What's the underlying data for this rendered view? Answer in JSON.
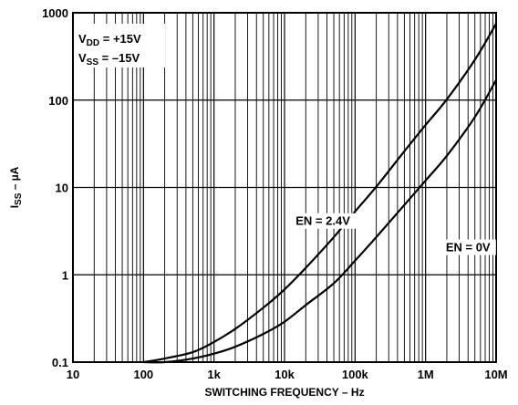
{
  "chart_data": {
    "type": "line",
    "x_scale": "log",
    "y_scale": "log",
    "xlim": [
      10,
      10000000
    ],
    "ylim": [
      0.1,
      1000
    ],
    "x_ticks": [
      {
        "value": 10,
        "label": "10"
      },
      {
        "value": 100,
        "label": "100"
      },
      {
        "value": 1000,
        "label": "1k"
      },
      {
        "value": 10000,
        "label": "10k"
      },
      {
        "value": 100000,
        "label": "100k"
      },
      {
        "value": 1000000,
        "label": "1M"
      },
      {
        "value": 10000000,
        "label": "10M"
      }
    ],
    "y_ticks": [
      {
        "value": 0.1,
        "label": "0.1"
      },
      {
        "value": 1,
        "label": "1"
      },
      {
        "value": 10,
        "label": "10"
      },
      {
        "value": 100,
        "label": "100"
      },
      {
        "value": 1000,
        "label": "1000"
      }
    ],
    "xlabel": "SWITCHING FREQUENCY – Hz",
    "ylabel": {
      "main": "I",
      "sub": "SS",
      "rest": " – µA"
    },
    "grid": true,
    "annotations": {
      "vdd": {
        "main": "V",
        "sub": "DD",
        "rest": " = +15V"
      },
      "vss": {
        "main": "V",
        "sub": "SS",
        "rest": " = –15V"
      }
    },
    "series": [
      {
        "name": "EN = 2.4V",
        "x": [
          100,
          200,
          500,
          1000,
          2000,
          5000,
          10000,
          20000,
          50000,
          100000,
          200000,
          500000,
          1000000,
          2000000,
          5000000,
          10000000
        ],
        "y": [
          0.1,
          0.11,
          0.13,
          0.17,
          0.24,
          0.42,
          0.68,
          1.2,
          2.7,
          5.3,
          10.2,
          26,
          52,
          102,
          290,
          750
        ]
      },
      {
        "name": "EN = 0V",
        "x": [
          100,
          200,
          500,
          1000,
          2000,
          5000,
          10000,
          20000,
          50000,
          100000,
          200000,
          500000,
          1000000,
          2000000,
          5000000,
          10000000
        ],
        "y": [
          0.1,
          0.1,
          0.11,
          0.125,
          0.15,
          0.21,
          0.29,
          0.45,
          0.8,
          1.45,
          2.7,
          6.3,
          12,
          23,
          64,
          170
        ]
      }
    ],
    "series_label_anchor": [
      {
        "x": 35000,
        "y": 3.8
      },
      {
        "x": 4000000,
        "y": 1.9
      }
    ]
  }
}
